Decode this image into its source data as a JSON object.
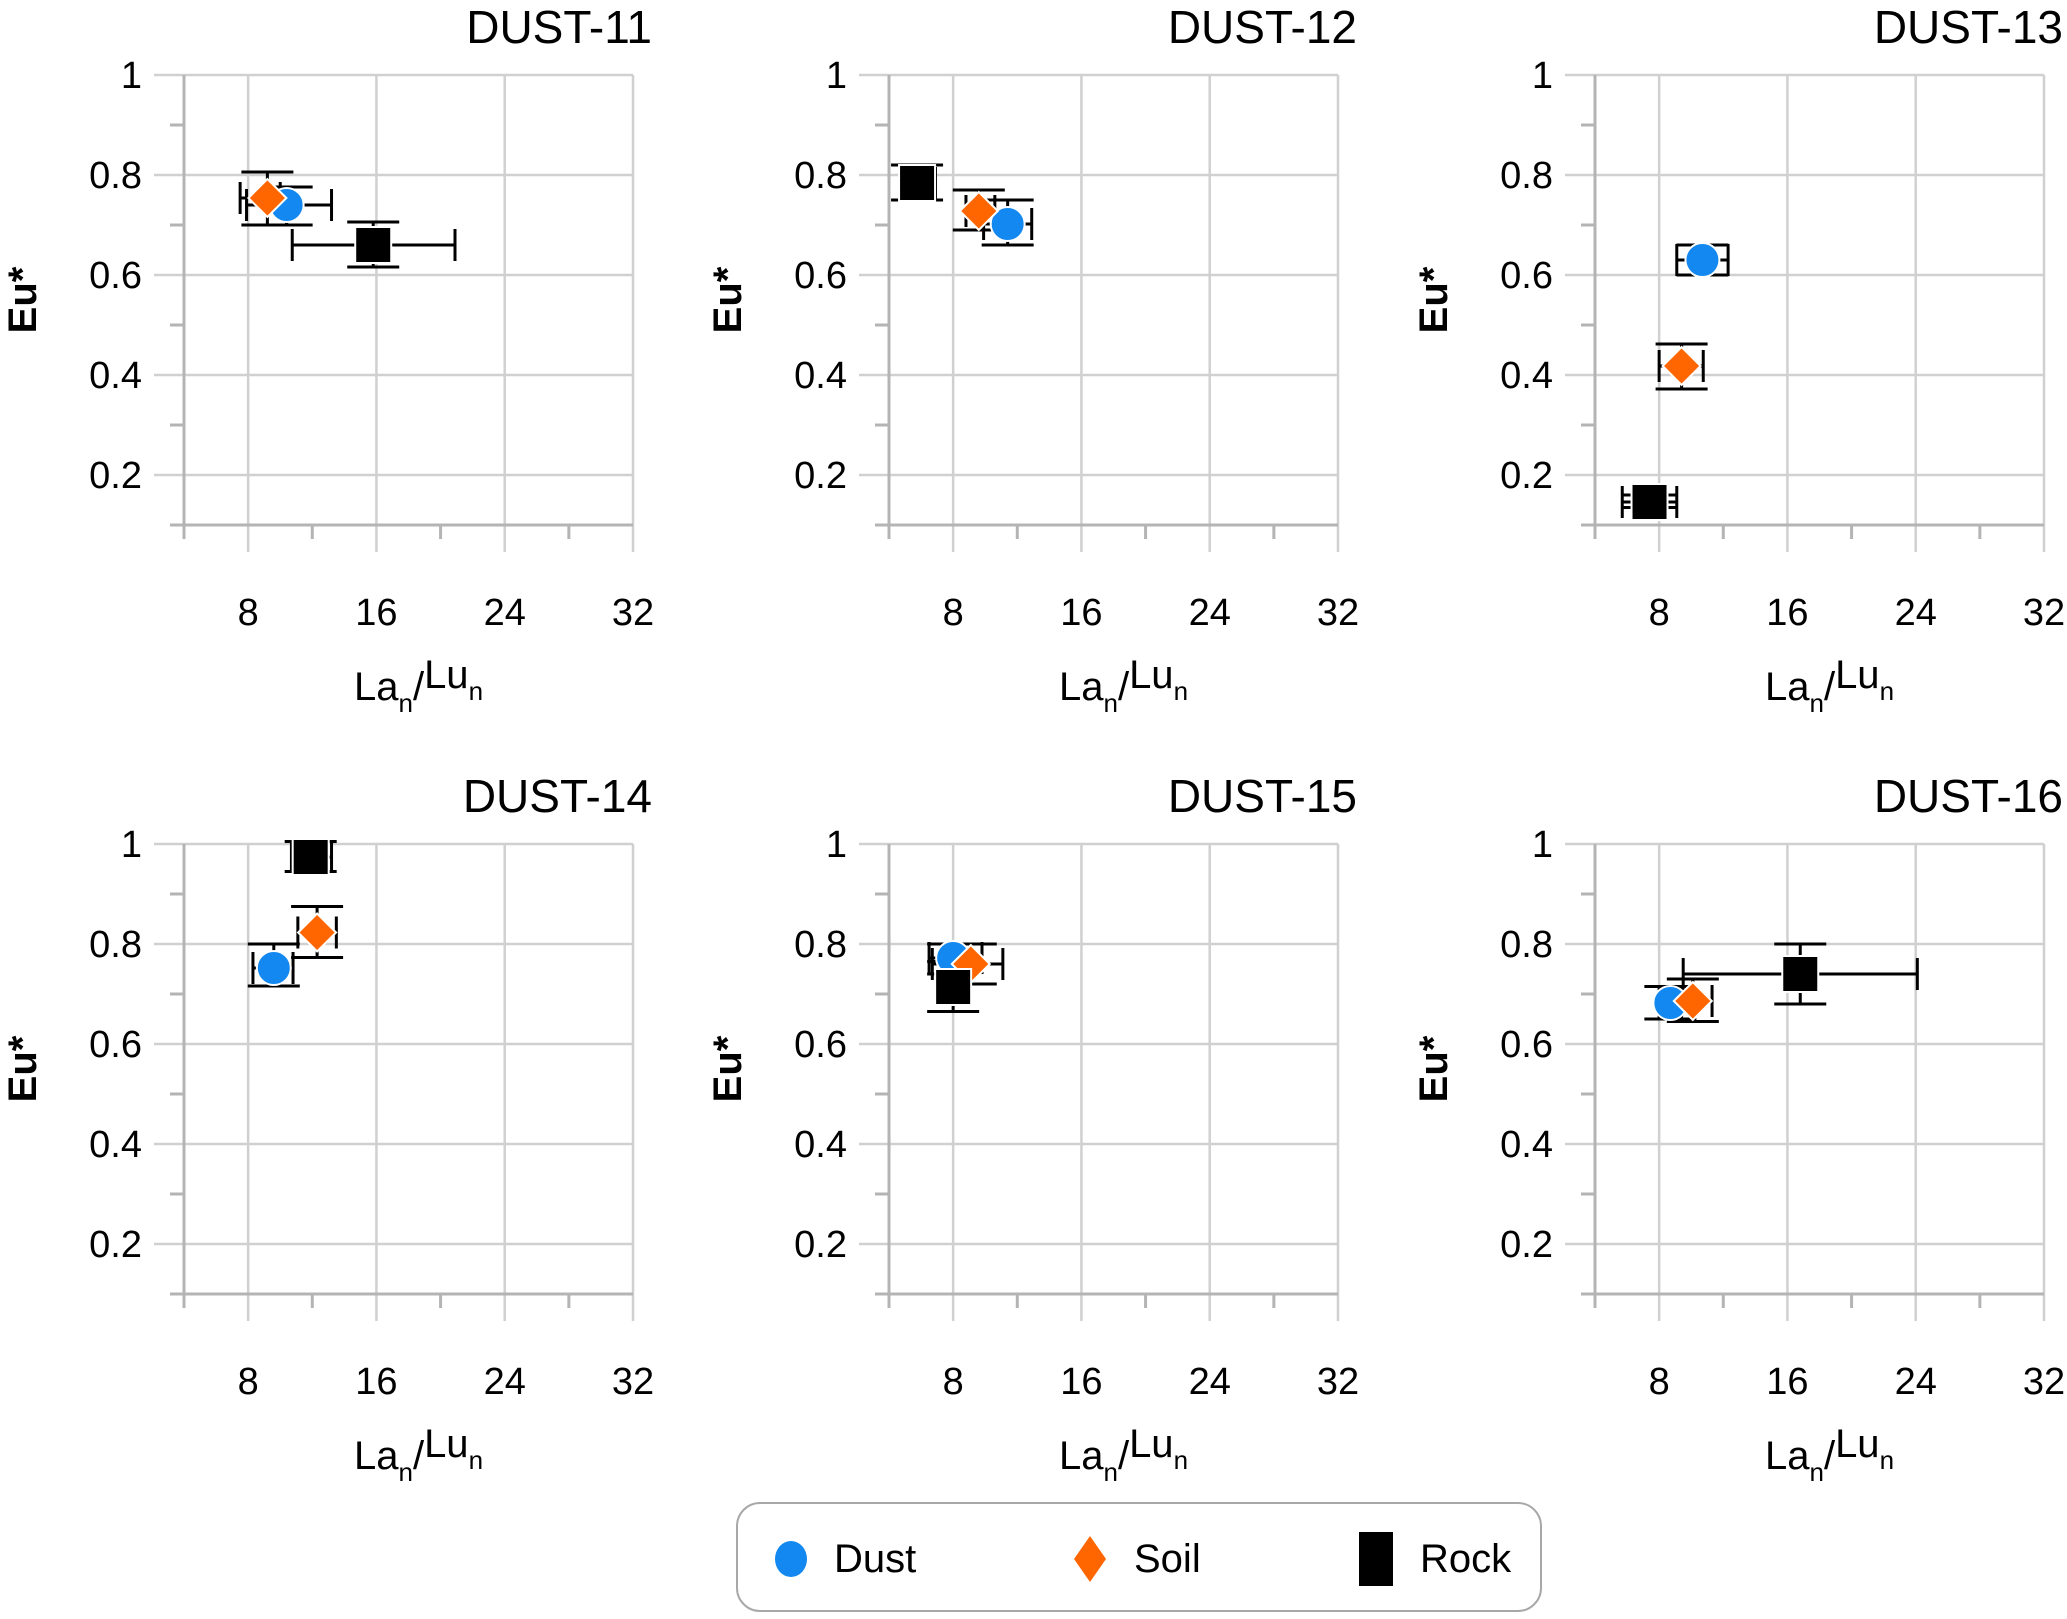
{
  "chart_data": {
    "type": "scatter",
    "layout": "2x3 small multiples",
    "shared": {
      "xlabel": {
        "main": "La",
        "sub": "n",
        "sep": "/",
        "main2": "Lu",
        "sub2": "n"
      },
      "xlabel_text": "La_n/Lu_n",
      "ylabel": "Eu*",
      "xlim": [
        4,
        32
      ],
      "ylim": [
        0.1,
        1
      ],
      "xticks": [
        8,
        16,
        24,
        32
      ],
      "xminor": [
        4,
        12,
        20,
        28
      ],
      "yticks": [
        0.2,
        0.4,
        0.6,
        0.8,
        1
      ],
      "yticklabels": [
        "0.2",
        "0.4",
        "0.6",
        "0.8",
        "1"
      ],
      "yminor": [
        0.1,
        0.3,
        0.5,
        0.7,
        0.9
      ],
      "grid": true,
      "error_bars": true
    },
    "legend": {
      "placement": "bottom-center",
      "entries": [
        {
          "name": "Dust",
          "marker": "circle",
          "color": "#1288F0"
        },
        {
          "name": "Soil",
          "marker": "diamond",
          "color": "#FF6600"
        },
        {
          "name": "Rock",
          "marker": "square",
          "color": "#000000"
        }
      ]
    },
    "panels": [
      {
        "title": "DUST-11",
        "series": [
          {
            "name": "Dust",
            "x": 10.4,
            "y": 0.74,
            "xerr": [
              7.9,
              13.2
            ],
            "yerr": [
              0.7,
              0.776
            ]
          },
          {
            "name": "Soil",
            "x": 9.2,
            "y": 0.754,
            "xerr": [
              7.5,
              10.0
            ],
            "yerr": [
              0.7,
              0.806
            ]
          },
          {
            "name": "Rock",
            "x": 15.8,
            "y": 0.66,
            "xerr": [
              10.75,
              20.9
            ],
            "yerr": [
              0.616,
              0.706
            ]
          }
        ]
      },
      {
        "title": "DUST-12",
        "series": [
          {
            "name": "Dust",
            "x": 11.4,
            "y": 0.702,
            "xerr": [
              9.9,
              12.9
            ],
            "yerr": [
              0.66,
              0.75
            ]
          },
          {
            "name": "Soil",
            "x": 9.6,
            "y": 0.728,
            "xerr": [
              8.8,
              10.6
            ],
            "yerr": [
              0.69,
              0.77
            ]
          },
          {
            "name": "Rock",
            "x": 5.75,
            "y": 0.784,
            "xerr": [
              5.3,
              6.9
            ],
            "yerr": [
              0.75,
              0.82
            ]
          }
        ]
      },
      {
        "title": "DUST-13",
        "series": [
          {
            "name": "Dust",
            "x": 10.7,
            "y": 0.63,
            "xerr": [
              9.1,
              12.3
            ],
            "yerr": [
              0.6,
              0.66
            ]
          },
          {
            "name": "Soil",
            "x": 9.4,
            "y": 0.418,
            "xerr": [
              8.0,
              10.75
            ],
            "yerr": [
              0.372,
              0.462
            ]
          },
          {
            "name": "Rock",
            "x": 7.4,
            "y": 0.146,
            "xerr": [
              5.7,
              9.1
            ],
            "yerr": [
              0.135,
              0.16
            ]
          }
        ]
      },
      {
        "title": "DUST-14",
        "series": [
          {
            "name": "Dust",
            "x": 9.6,
            "y": 0.752,
            "xerr": [
              8.3,
              10.8
            ],
            "yerr": [
              0.716,
              0.8
            ]
          },
          {
            "name": "Soil",
            "x": 12.3,
            "y": 0.823,
            "xerr": [
              11.1,
              13.5
            ],
            "yerr": [
              0.773,
              0.875
            ]
          },
          {
            "name": "Rock",
            "x": 11.9,
            "y": 0.974,
            "xerr": [
              10.7,
              13.2
            ],
            "yerr": [
              0.945,
              1.005
            ]
          }
        ]
      },
      {
        "title": "DUST-15",
        "series": [
          {
            "name": "Dust",
            "x": 8.0,
            "y": 0.772,
            "xerr": [
              6.5,
              9.8
            ],
            "yerr": [
              0.74,
              0.8
            ]
          },
          {
            "name": "Soil",
            "x": 9.1,
            "y": 0.76,
            "xerr": [
              6.7,
              11.1
            ],
            "yerr": [
              0.72,
              0.8
            ]
          },
          {
            "name": "Rock",
            "x": 8.0,
            "y": 0.714,
            "xerr": [
              7.2,
              8.8
            ],
            "yerr": [
              0.665,
              0.765
            ]
          }
        ]
      },
      {
        "title": "DUST-16",
        "series": [
          {
            "name": "Dust",
            "x": 8.7,
            "y": 0.682,
            "xerr": [
              8.0,
              9.4
            ],
            "yerr": [
              0.65,
              0.715
            ]
          },
          {
            "name": "Soil",
            "x": 10.1,
            "y": 0.686,
            "xerr": [
              8.9,
              11.3
            ],
            "yerr": [
              0.645,
              0.73
            ]
          },
          {
            "name": "Rock",
            "x": 16.8,
            "y": 0.74,
            "xerr": [
              9.5,
              24.1
            ],
            "yerr": [
              0.68,
              0.8
            ]
          }
        ]
      }
    ]
  }
}
